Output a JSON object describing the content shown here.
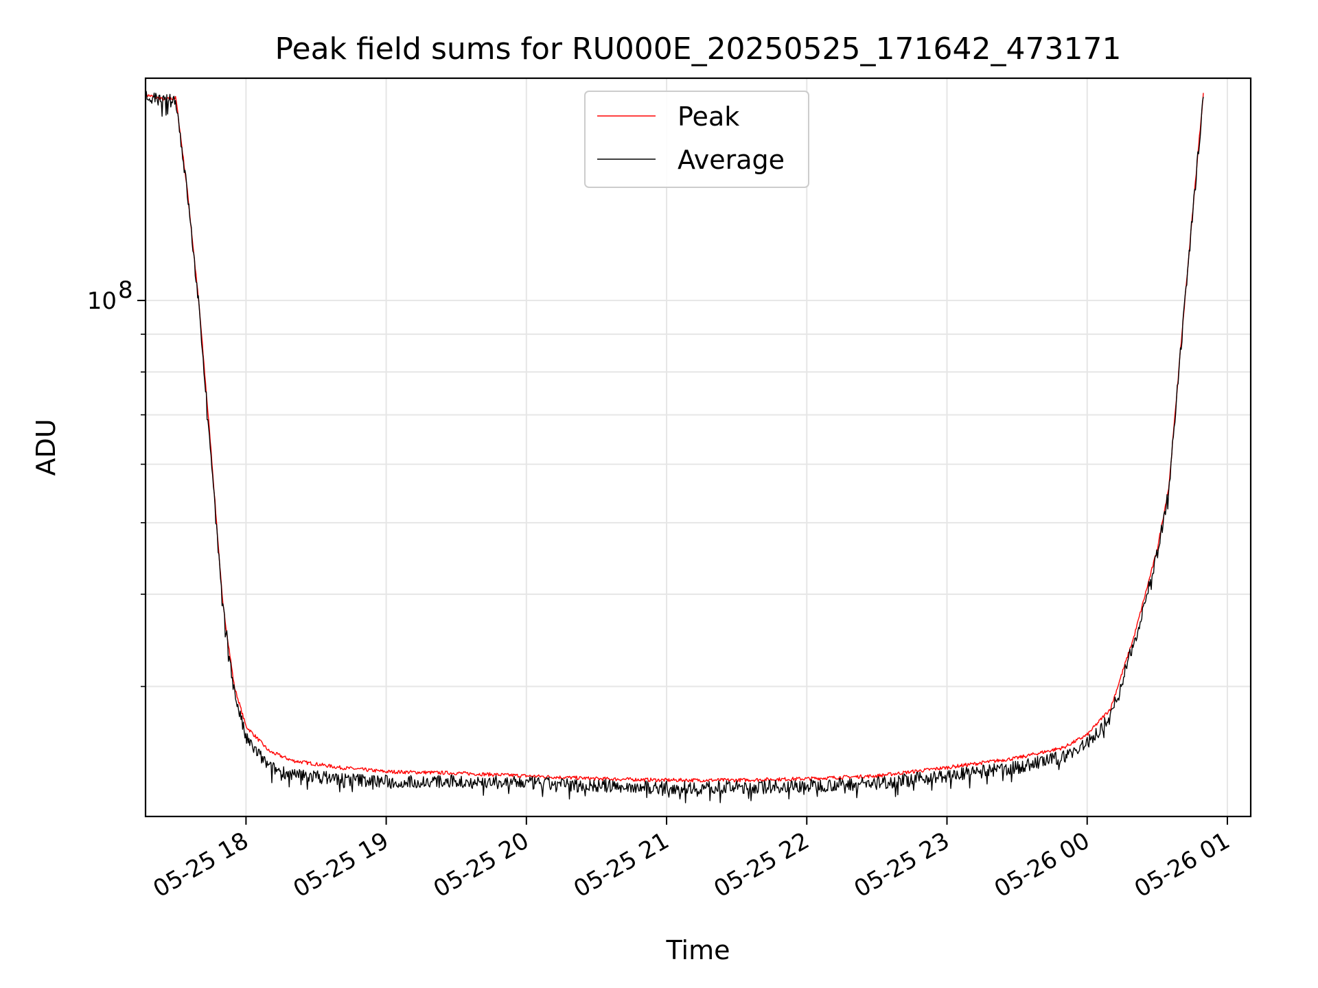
{
  "chart_data": {
    "type": "line",
    "title": "Peak field sums for RU000E_20250525_171642_473171",
    "xlabel": "Time",
    "ylabel": "ADU",
    "yscale": "log",
    "xlim": [
      "2025-05-25 17:17",
      "2025-05-26 01:10"
    ],
    "ylim": [
      20000000,
      200000000
    ],
    "x_ticks": [
      "05-25 18",
      "05-25 19",
      "05-25 20",
      "05-25 21",
      "05-25 22",
      "05-25 23",
      "05-26 00",
      "05-26 01"
    ],
    "y_ticks": [
      {
        "value": 100000000,
        "label": "10",
        "exponent": "8"
      }
    ],
    "y_minor_ticks": [
      20000000,
      30000000,
      40000000,
      50000000,
      60000000,
      70000000,
      80000000,
      90000000,
      200000000
    ],
    "grid": true,
    "legend_position": "upper center",
    "series": [
      {
        "name": "Peak",
        "color": "#ff0000",
        "x": [
          "2025-05-25 17:17",
          "2025-05-25 17:25",
          "2025-05-25 17:30",
          "2025-05-25 17:35",
          "2025-05-25 17:40",
          "2025-05-25 17:45",
          "2025-05-25 17:50",
          "2025-05-25 17:55",
          "2025-05-25 18:00",
          "2025-05-25 18:10",
          "2025-05-25 18:20",
          "2025-05-25 18:40",
          "2025-05-25 19:00",
          "2025-05-25 19:30",
          "2025-05-25 20:00",
          "2025-05-25 20:30",
          "2025-05-25 21:00",
          "2025-05-25 21:30",
          "2025-05-25 22:00",
          "2025-05-25 22:30",
          "2025-05-25 23:00",
          "2025-05-25 23:30",
          "2025-05-25 23:50",
          "2025-05-26 00:00",
          "2025-05-26 00:10",
          "2025-05-26 00:20",
          "2025-05-26 00:30",
          "2025-05-26 00:35",
          "2025-05-26 00:40",
          "2025-05-26 00:45",
          "2025-05-26 00:50"
        ],
        "y": [
          190000000,
          187000000,
          188000000,
          140000000,
          98000000,
          63000000,
          39000000,
          30000000,
          26500000,
          24500000,
          23800000,
          23300000,
          23000000,
          22900000,
          22700000,
          22500000,
          22400000,
          22400000,
          22500000,
          22700000,
          23300000,
          24000000,
          24800000,
          25800000,
          28000000,
          35000000,
          46000000,
          56000000,
          86000000,
          130000000,
          195000000
        ]
      },
      {
        "name": "Average",
        "color": "#000000",
        "x": [
          "2025-05-25 17:17",
          "2025-05-25 17:25",
          "2025-05-25 17:30",
          "2025-05-25 17:35",
          "2025-05-25 17:40",
          "2025-05-25 17:45",
          "2025-05-25 17:50",
          "2025-05-25 17:55",
          "2025-05-25 18:00",
          "2025-05-25 18:10",
          "2025-05-25 18:20",
          "2025-05-25 18:40",
          "2025-05-25 19:00",
          "2025-05-25 19:30",
          "2025-05-25 20:00",
          "2025-05-25 20:30",
          "2025-05-25 21:00",
          "2025-05-25 21:30",
          "2025-05-25 22:00",
          "2025-05-25 22:30",
          "2025-05-25 23:00",
          "2025-05-25 23:30",
          "2025-05-25 23:50",
          "2025-05-26 00:00",
          "2025-05-26 00:10",
          "2025-05-26 00:20",
          "2025-05-26 00:30",
          "2025-05-26 00:35",
          "2025-05-26 00:40",
          "2025-05-26 00:45",
          "2025-05-26 00:50"
        ],
        "y": [
          189000000,
          186000000,
          187000000,
          139000000,
          97000000,
          62000000,
          38500000,
          29500000,
          25500000,
          23300000,
          22800000,
          22500000,
          22300000,
          22300000,
          22200000,
          22000000,
          21900000,
          21900000,
          22000000,
          22200000,
          22700000,
          23300000,
          24100000,
          25100000,
          27300000,
          34300000,
          45300000,
          55300000,
          85000000,
          129000000,
          194000000
        ]
      }
    ]
  }
}
